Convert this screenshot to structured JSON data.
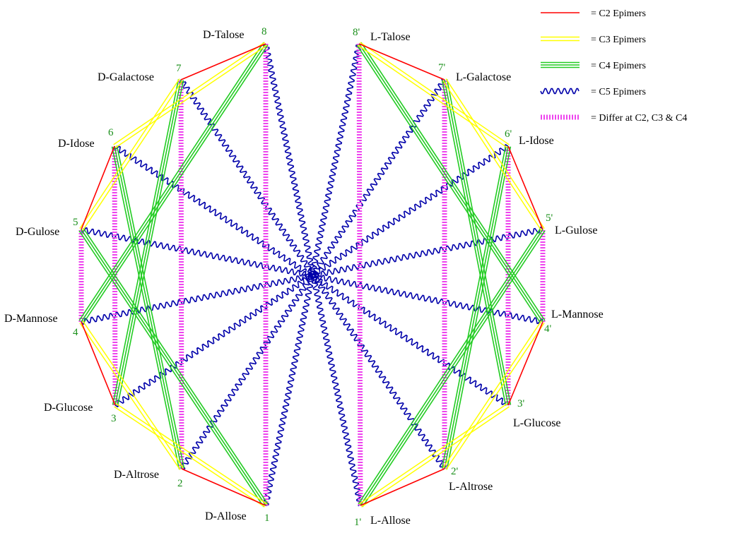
{
  "colors": {
    "c2": "#ff0000",
    "c3": "#ffff00",
    "c4": "#22cc22",
    "c5": "#0000aa",
    "c234": "#ee44ee",
    "number": "#1a8f1a",
    "text": "#000000"
  },
  "nodes": [
    {
      "id": "D1",
      "name": "D-Allose",
      "num": "1"
    },
    {
      "id": "D2",
      "name": "D-Altrose",
      "num": "2"
    },
    {
      "id": "D3",
      "name": "D-Glucose",
      "num": "3"
    },
    {
      "id": "D4",
      "name": "D-Mannose",
      "num": "4"
    },
    {
      "id": "D5",
      "name": "D-Gulose",
      "num": "5"
    },
    {
      "id": "D6",
      "name": "D-Idose",
      "num": "6"
    },
    {
      "id": "D7",
      "name": "D-Galactose",
      "num": "7"
    },
    {
      "id": "D8",
      "name": "D-Talose",
      "num": "8"
    },
    {
      "id": "L1",
      "name": "L-Allose",
      "num": "1'"
    },
    {
      "id": "L2",
      "name": "L-Altrose",
      "num": "2'"
    },
    {
      "id": "L3",
      "name": "L-Glucose",
      "num": "3'"
    },
    {
      "id": "L4",
      "name": "L-Mannose",
      "num": "4'"
    },
    {
      "id": "L5",
      "name": "L-Gulose",
      "num": "5'"
    },
    {
      "id": "L6",
      "name": "L-Idose",
      "num": "6'"
    },
    {
      "id": "L7",
      "name": "L-Galactose",
      "num": "7'"
    },
    {
      "id": "L8",
      "name": "L-Talose",
      "num": "8'"
    }
  ],
  "legend": [
    {
      "type": "c2",
      "label": "= C2 Epimers"
    },
    {
      "type": "c3",
      "label": "= C3 Epimers"
    },
    {
      "type": "c4",
      "label": "= C4 Epimers"
    },
    {
      "type": "c5",
      "label": "= C5 Epimers"
    },
    {
      "type": "c234",
      "label": "= Differ at C2, C3 & C4"
    }
  ]
}
